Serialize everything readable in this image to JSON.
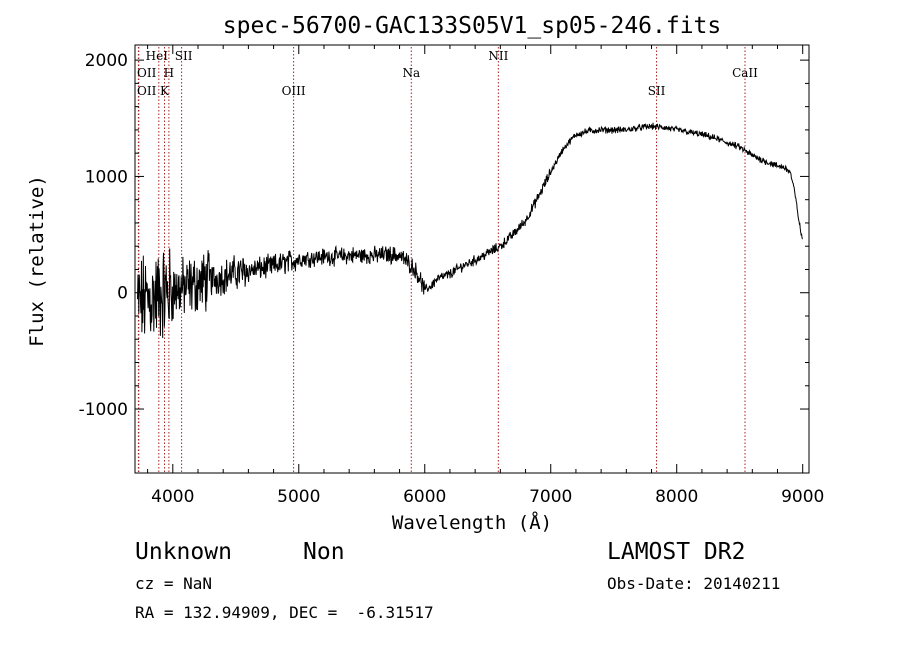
{
  "chart_data": {
    "type": "line",
    "title": "spec-56700-GAC133S05V1_sp05-246.fits",
    "xlabel": "Wavelength (Å)",
    "ylabel": "Flux (relative)",
    "xlim": [
      3700,
      9050
    ],
    "ylim": [
      -1550,
      2130
    ],
    "xticks": [
      4000,
      5000,
      6000,
      7000,
      8000,
      9000
    ],
    "yticks": [
      -1000,
      0,
      1000,
      2000
    ],
    "grid": false,
    "line_color": "#000000",
    "marker_color": "#aa2222",
    "series": [
      {
        "x": [
          3700,
          3750,
          3800,
          3850,
          3900,
          3950,
          4000,
          4050,
          4100,
          4150,
          4200,
          4300,
          4400,
          4500,
          4600,
          4700,
          4800,
          4900,
          5000,
          5100,
          5200,
          5300,
          5400,
          5500,
          5600,
          5700,
          5800,
          5900,
          5950,
          6000,
          6050,
          6100,
          6200,
          6300,
          6400,
          6500,
          6600,
          6700,
          6800,
          6900,
          7000,
          7100,
          7200,
          7300,
          7400,
          7500,
          7600,
          7700,
          7800,
          7900,
          8000,
          8100,
          8200,
          8300,
          8400,
          8500,
          8600,
          8700,
          8800,
          8850,
          8900,
          8930,
          8960,
          8980,
          9000
        ],
        "y": [
          -100,
          -80,
          -60,
          -40,
          -20,
          0,
          20,
          30,
          40,
          60,
          80,
          110,
          140,
          170,
          190,
          210,
          230,
          260,
          290,
          300,
          310,
          310,
          320,
          320,
          320,
          330,
          320,
          230,
          150,
          20,
          60,
          120,
          160,
          230,
          280,
          340,
          400,
          500,
          620,
          820,
          1040,
          1240,
          1360,
          1390,
          1400,
          1400,
          1400,
          1420,
          1430,
          1420,
          1400,
          1380,
          1360,
          1330,
          1290,
          1250,
          1180,
          1130,
          1090,
          1080,
          1040,
          900,
          700,
          550,
          450
        ]
      }
    ],
    "lines": [
      {
        "name": "OII",
        "x": 3727
      },
      {
        "name": "OII",
        "x": 3730
      },
      {
        "name": "HeI",
        "x": 3889
      },
      {
        "name": "K",
        "x": 3934
      },
      {
        "name": "H",
        "x": 3969
      },
      {
        "name": "SII",
        "x": 4070
      },
      {
        "name": "OIII",
        "x": 4959
      },
      {
        "name": "Na",
        "x": 5893
      },
      {
        "name": "NII",
        "x": 6584
      },
      {
        "name": "SII",
        "x": 7840
      },
      {
        "name": "CaII",
        "x": 8542
      }
    ]
  },
  "info": {
    "object_class": "Unknown",
    "subclass": "Non",
    "survey": "LAMOST DR2",
    "cz": "cz = NaN",
    "obs_date": "Obs-Date: 20140211",
    "radec": "RA = 132.94909, DEC =  -6.31517"
  }
}
